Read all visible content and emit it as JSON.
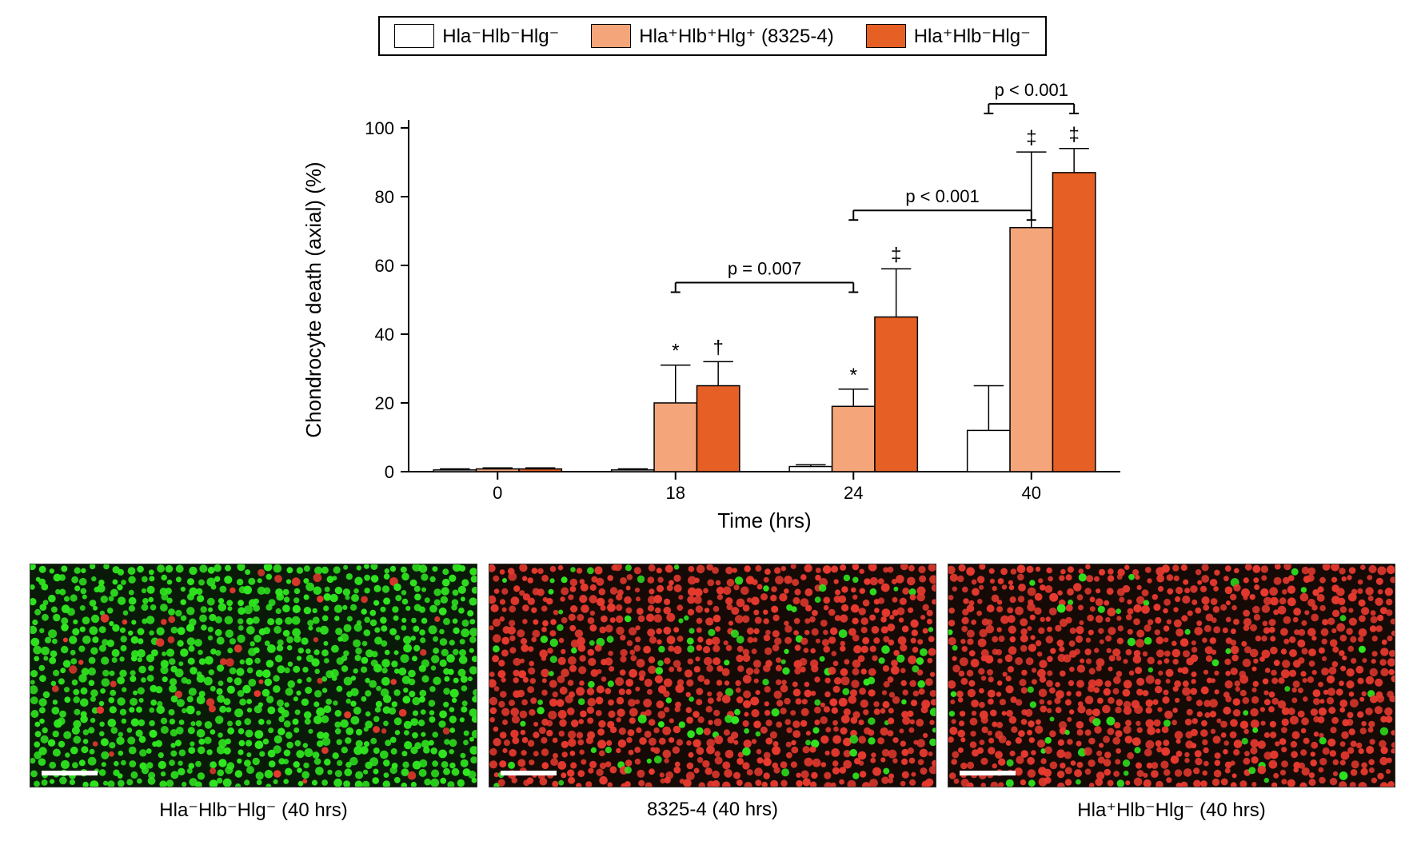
{
  "legend": {
    "items": [
      {
        "label": "Hla⁻Hlb⁻Hlg⁻",
        "color": "#ffffff"
      },
      {
        "label": "Hla⁺Hlb⁺Hlg⁺ (8325-4)",
        "color": "#f4a57a"
      },
      {
        "label": "Hla⁺Hlb⁻Hlg⁻",
        "color": "#e65f24"
      }
    ],
    "border_color": "#000000"
  },
  "chart": {
    "type": "bar",
    "ylabel": "Chondrocyte death (axial) (%)",
    "xlabel": "Time (hrs)",
    "label_fontsize": 26,
    "tick_fontsize": 22,
    "ylim": [
      0,
      100
    ],
    "ytick_step": 20,
    "categories": [
      "0",
      "18",
      "24",
      "40"
    ],
    "series_colors": [
      "#ffffff",
      "#f4a57a",
      "#e65f24"
    ],
    "bar_border": "#000000",
    "axis_color": "#000000",
    "axis_width": 2,
    "bar_width": 0.24,
    "groups": [
      {
        "x": "0",
        "values": [
          0.5,
          0.8,
          0.8
        ],
        "errs": [
          0.3,
          0.3,
          0.3
        ],
        "markers": [
          "",
          "",
          ""
        ]
      },
      {
        "x": "18",
        "values": [
          0.5,
          20,
          25
        ],
        "errs": [
          0.3,
          11,
          7
        ],
        "markers": [
          "",
          "*",
          "†"
        ]
      },
      {
        "x": "24",
        "values": [
          1.5,
          19,
          45
        ],
        "errs": [
          0.5,
          5,
          14
        ],
        "markers": [
          "",
          "*",
          "‡"
        ]
      },
      {
        "x": "40",
        "values": [
          12,
          71,
          87
        ],
        "errs": [
          13,
          22,
          7
        ],
        "markers": [
          "",
          "‡",
          "‡"
        ]
      }
    ],
    "brackets": [
      {
        "from_group": 1,
        "to_group": 2,
        "y": 55,
        "label": "p = 0.007"
      },
      {
        "from_group": 2,
        "to_group": 3,
        "y": 76,
        "label": "p < 0.001"
      },
      {
        "from_group": 3,
        "to_group": 3,
        "y": 107,
        "label": "p < 0.001",
        "span_full_top": true
      }
    ]
  },
  "micrographs": {
    "panels": [
      {
        "caption": "Hla⁻Hlb⁻Hlg⁻ (40 hrs)",
        "bg": "#0a1a08",
        "dot_main": "#2fe81f",
        "dot_alt": "#e83a2f",
        "alt_ratio": 0.05
      },
      {
        "caption": "8325-4 (40 hrs)",
        "bg": "#160a06",
        "dot_main": "#e83a2f",
        "dot_alt": "#2fe81f",
        "alt_ratio": 0.1
      },
      {
        "caption": "Hla⁺Hlb⁻Hlg⁻ (40 hrs)",
        "bg": "#160a06",
        "dot_main": "#e83a2f",
        "dot_alt": "#2fe81f",
        "alt_ratio": 0.06
      }
    ],
    "scalebar_color": "#ffffff"
  }
}
